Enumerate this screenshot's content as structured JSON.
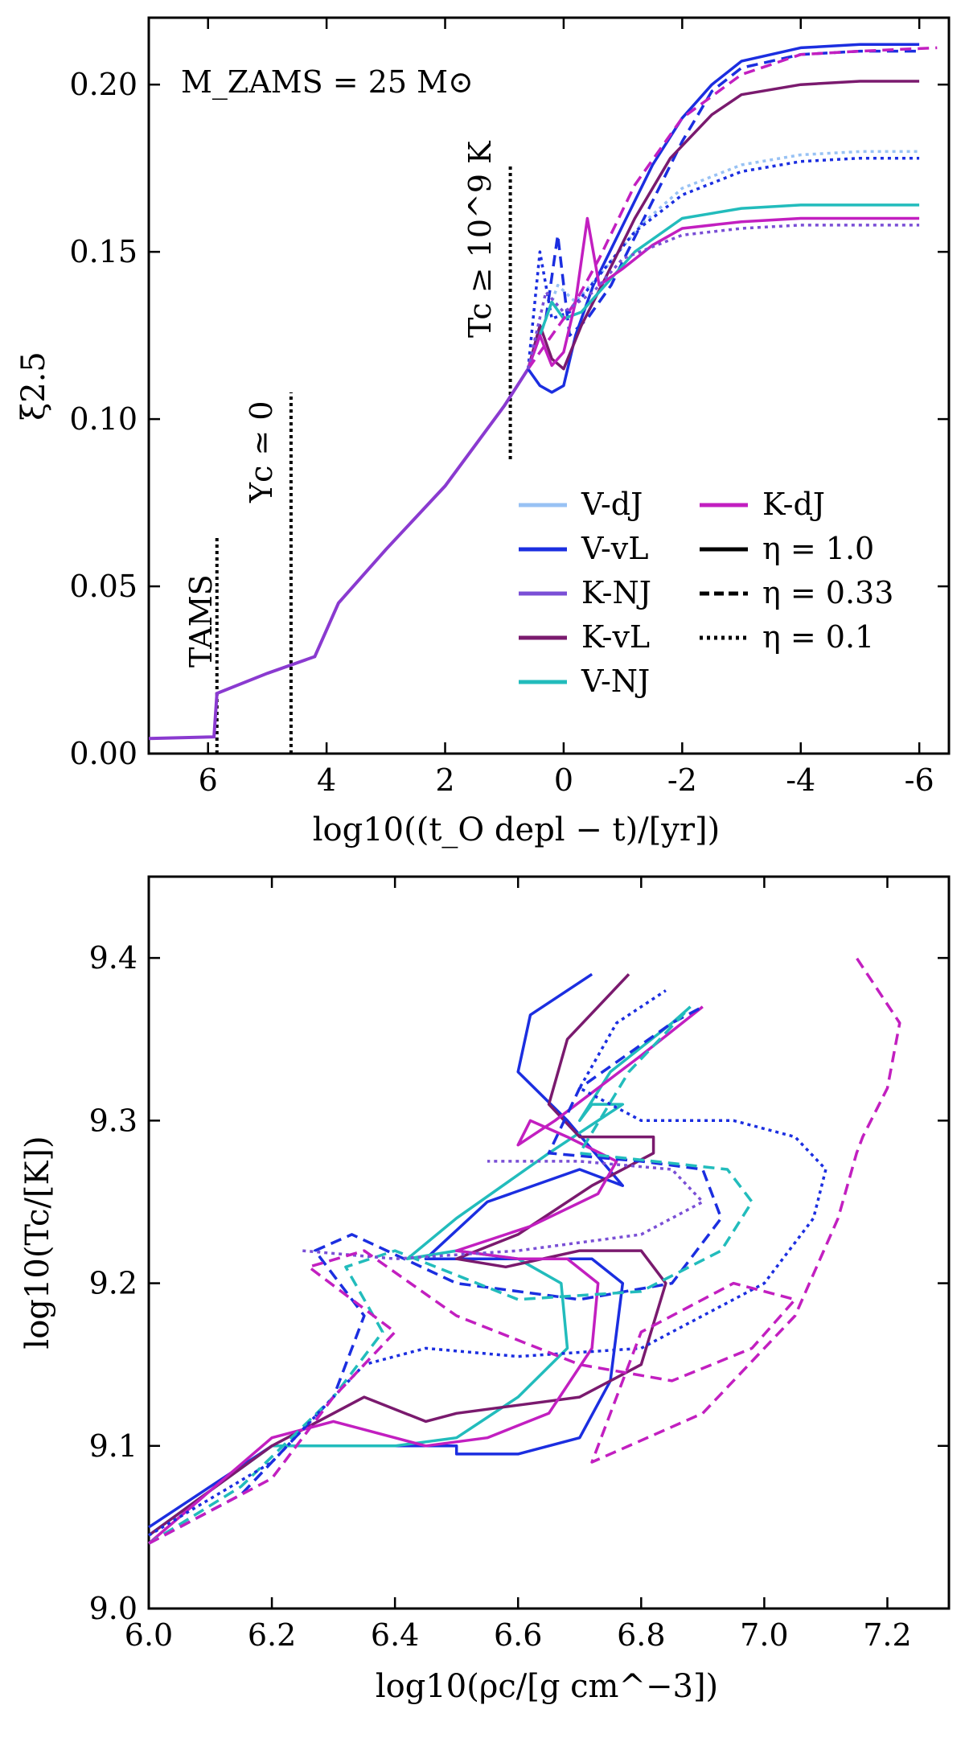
{
  "chart_data": [
    {
      "type": "line",
      "title": "",
      "annotation_text": "M_ZAMS = 25 M⊙",
      "xlabel": "log10((t_O depl − t)/[yr])",
      "ylabel": "ξ2.5",
      "xlim": [
        7,
        -6.5
      ],
      "ylim": [
        0,
        0.22
      ],
      "xticks": [
        6,
        4,
        2,
        0,
        -2,
        -4,
        -6
      ],
      "xtick_labels": [
        "6",
        "4",
        "2",
        "0",
        "-2",
        "-4",
        "-6"
      ],
      "yticks": [
        0,
        0.05,
        0.1,
        0.15,
        0.2
      ],
      "ytick_labels": [
        "0.00",
        "0.05",
        "0.10",
        "0.15",
        "0.20"
      ],
      "vlines": [
        {
          "x": 5.85,
          "ymax": 0.065,
          "label": "TAMS"
        },
        {
          "x": 4.6,
          "ymax": 0.108,
          "label": "Yc ≃ 0"
        },
        {
          "x": 0.9,
          "ymax": 0.176,
          "label": "Tc ≥ 10^9 K",
          "ymin": 0.088
        }
      ],
      "shared_trunk": {
        "x": [
          7,
          5.9,
          5.85,
          5.0,
          4.2,
          3.8,
          3.0,
          2.0,
          1.0,
          0.6
        ],
        "y": [
          0.0045,
          0.005,
          0.018,
          0.024,
          0.029,
          0.045,
          0.061,
          0.08,
          0.104,
          0.115
        ]
      },
      "series": [
        {
          "name": "V-vL",
          "eta": "1.0",
          "color": "#1b2ee0",
          "x": [
            0.6,
            0.4,
            0.2,
            0,
            -0.2,
            -0.5,
            -1,
            -1.5,
            -2,
            -2.5,
            -3,
            -4,
            -5,
            -6
          ],
          "y": [
            0.115,
            0.11,
            0.108,
            0.11,
            0.125,
            0.14,
            0.158,
            0.176,
            0.19,
            0.2,
            0.207,
            0.211,
            0.212,
            0.212
          ]
        },
        {
          "name": "V-vL",
          "eta": "0.33",
          "color": "#1b2ee0",
          "x": [
            0.6,
            0.3,
            0.1,
            -0.1,
            -0.4,
            -0.8,
            -1.3,
            -2,
            -2.5,
            -3,
            -4,
            -5,
            -6
          ],
          "y": [
            0.115,
            0.13,
            0.155,
            0.125,
            0.13,
            0.14,
            0.158,
            0.183,
            0.198,
            0.205,
            0.209,
            0.21,
            0.21
          ]
        },
        {
          "name": "V-dJ",
          "eta": "0.1",
          "color": "#98c2f4",
          "x": [
            0.6,
            0.3,
            0.1,
            -0.2,
            -0.7,
            -1.3,
            -2,
            -3,
            -4,
            -5,
            -6
          ],
          "y": [
            0.115,
            0.13,
            0.14,
            0.135,
            0.145,
            0.158,
            0.169,
            0.176,
            0.179,
            0.18,
            0.18
          ]
        },
        {
          "name": "V-vL",
          "eta": "0.1",
          "color": "#1b2ee0",
          "x": [
            0.6,
            0.4,
            0.2,
            -0.1,
            -0.6,
            -1.2,
            -2,
            -3,
            -4,
            -5,
            -6
          ],
          "y": [
            0.115,
            0.15,
            0.13,
            0.132,
            0.143,
            0.156,
            0.167,
            0.174,
            0.177,
            0.178,
            0.178
          ]
        },
        {
          "name": "K-vL",
          "eta": "1.0",
          "color": "#7a1a6e",
          "x": [
            0.6,
            0.4,
            0.2,
            0,
            -0.3,
            -0.7,
            -1.2,
            -1.8,
            -2.5,
            -3,
            -4,
            -5,
            -6
          ],
          "y": [
            0.115,
            0.128,
            0.118,
            0.115,
            0.128,
            0.142,
            0.16,
            0.178,
            0.191,
            0.197,
            0.2,
            0.201,
            0.201
          ]
        },
        {
          "name": "V-NJ",
          "eta": "1.0",
          "color": "#22bcbc",
          "x": [
            0.6,
            0.4,
            0.2,
            0,
            -0.3,
            -0.7,
            -1.2,
            -2,
            -3,
            -4,
            -5,
            -6
          ],
          "y": [
            0.115,
            0.125,
            0.135,
            0.13,
            0.132,
            0.14,
            0.15,
            0.16,
            0.163,
            0.164,
            0.164,
            0.164
          ]
        },
        {
          "name": "K-dJ",
          "eta": "1.0",
          "color": "#c21fc0",
          "x": [
            0.6,
            0.4,
            0.2,
            0,
            -0.2,
            -0.4,
            -0.6,
            -1,
            -1.5,
            -2,
            -3,
            -4,
            -5,
            -6
          ],
          "y": [
            0.115,
            0.125,
            0.116,
            0.12,
            0.135,
            0.16,
            0.14,
            0.145,
            0.152,
            0.157,
            0.159,
            0.16,
            0.16,
            0.16
          ]
        },
        {
          "name": "K-dJ",
          "eta": "0.33",
          "color": "#c21fc0",
          "x": [
            0.6,
            0.2,
            -0.2,
            -0.6,
            -1.2,
            -2,
            -3,
            -4,
            -5,
            -6.3
          ],
          "y": [
            0.115,
            0.125,
            0.135,
            0.148,
            0.17,
            0.19,
            0.203,
            0.209,
            0.21,
            0.211
          ]
        },
        {
          "name": "K-NJ",
          "eta": "0.1",
          "color": "#7a4fd6",
          "x": [
            0.6,
            0.3,
            0,
            -0.5,
            -1,
            -2,
            -3,
            -4,
            -5,
            -6
          ],
          "y": [
            0.115,
            0.138,
            0.132,
            0.138,
            0.148,
            0.155,
            0.157,
            0.158,
            0.158,
            0.158
          ]
        }
      ]
    },
    {
      "type": "line",
      "title": "",
      "xlabel": "log10(ρc/[g cm^−3])",
      "ylabel": "log10(Tc/[K])",
      "xlim": [
        6.0,
        7.3
      ],
      "ylim": [
        9.0,
        9.45
      ],
      "xticks": [
        6.0,
        6.2,
        6.4,
        6.6,
        6.8,
        7.0,
        7.2
      ],
      "xtick_labels": [
        "6.0",
        "6.2",
        "6.4",
        "6.6",
        "6.8",
        "7.0",
        "7.2"
      ],
      "yticks": [
        9.0,
        9.1,
        9.2,
        9.3,
        9.4
      ],
      "ytick_labels": [
        "9.0",
        "9.1",
        "9.2",
        "9.3",
        "9.4"
      ],
      "series": [
        {
          "name": "V-vL",
          "eta": "1.0",
          "color": "#1b2ee0",
          "x": [
            6.0,
            6.2,
            6.3,
            6.4,
            6.5,
            6.5,
            6.6,
            6.7,
            6.75,
            6.77,
            6.72,
            6.6,
            6.45,
            6.55,
            6.7,
            6.77,
            6.68,
            6.6,
            6.62,
            6.72
          ],
          "y": [
            9.05,
            9.1,
            9.1,
            9.1,
            9.1,
            9.095,
            9.095,
            9.105,
            9.14,
            9.2,
            9.215,
            9.215,
            9.215,
            9.25,
            9.27,
            9.26,
            9.3,
            9.33,
            9.365,
            9.39
          ]
        },
        {
          "name": "V-NJ",
          "eta": "1.0",
          "color": "#22bcbc",
          "x": [
            6.0,
            6.2,
            6.3,
            6.4,
            6.5,
            6.6,
            6.68,
            6.67,
            6.6,
            6.5,
            6.42,
            6.5,
            6.65,
            6.77,
            6.72,
            6.7,
            6.75,
            6.85,
            6.88
          ],
          "y": [
            9.045,
            9.1,
            9.1,
            9.1,
            9.105,
            9.13,
            9.16,
            9.2,
            9.215,
            9.22,
            9.215,
            9.24,
            9.28,
            9.31,
            9.31,
            9.3,
            9.33,
            9.36,
            9.37
          ]
        },
        {
          "name": "K-vL",
          "eta": "1.0",
          "color": "#7a1a6e",
          "x": [
            6.0,
            6.2,
            6.35,
            6.45,
            6.5,
            6.6,
            6.7,
            6.8,
            6.84,
            6.8,
            6.7,
            6.58,
            6.5,
            6.6,
            6.72,
            6.82,
            6.82,
            6.7,
            6.65,
            6.68,
            6.78
          ],
          "y": [
            9.045,
            9.1,
            9.13,
            9.115,
            9.12,
            9.125,
            9.13,
            9.15,
            9.2,
            9.22,
            9.22,
            9.21,
            9.215,
            9.23,
            9.26,
            9.28,
            9.29,
            9.29,
            9.31,
            9.35,
            9.39
          ]
        },
        {
          "name": "K-dJ",
          "eta": "1.0",
          "color": "#c21fc0",
          "x": [
            6.0,
            6.2,
            6.3,
            6.45,
            6.55,
            6.65,
            6.72,
            6.73,
            6.68,
            6.6,
            6.5,
            6.62,
            6.73,
            6.76,
            6.68,
            6.62,
            6.6,
            6.66,
            6.8,
            6.9
          ],
          "y": [
            9.04,
            9.105,
            9.115,
            9.1,
            9.105,
            9.12,
            9.16,
            9.2,
            9.215,
            9.215,
            9.22,
            9.235,
            9.255,
            9.275,
            9.29,
            9.3,
            9.285,
            9.3,
            9.34,
            9.37
          ]
        },
        {
          "name": "V-vL",
          "eta": "0.33",
          "color": "#1b2ee0",
          "x": [
            6.0,
            6.15,
            6.3,
            6.35,
            6.27,
            6.33,
            6.5,
            6.7,
            6.85,
            6.93,
            6.9,
            6.8,
            6.65,
            6.7,
            6.85,
            6.9
          ],
          "y": [
            9.04,
            9.07,
            9.13,
            9.18,
            9.22,
            9.23,
            9.2,
            9.19,
            9.2,
            9.24,
            9.27,
            9.275,
            9.28,
            9.32,
            9.36,
            9.37
          ]
        },
        {
          "name": "V-NJ",
          "eta": "0.33",
          "color": "#22bcbc",
          "x": [
            6.0,
            6.15,
            6.3,
            6.38,
            6.32,
            6.4,
            6.6,
            6.8,
            6.93,
            6.98,
            6.94,
            6.82,
            6.7,
            6.78,
            6.88
          ],
          "y": [
            9.04,
            9.075,
            9.13,
            9.17,
            9.21,
            9.22,
            9.19,
            9.195,
            9.22,
            9.25,
            9.27,
            9.275,
            9.28,
            9.33,
            9.37
          ]
        },
        {
          "name": "V-vL",
          "eta": "0.1",
          "color": "#1b2ee0",
          "x": [
            6.0,
            6.2,
            6.35,
            6.45,
            6.6,
            6.8,
            7.0,
            7.08,
            7.1,
            7.05,
            6.95,
            6.8,
            6.7,
            6.76,
            6.84
          ],
          "y": [
            9.045,
            9.09,
            9.15,
            9.16,
            9.155,
            9.16,
            9.2,
            9.24,
            9.27,
            9.29,
            9.3,
            9.3,
            9.32,
            9.36,
            9.38
          ]
        },
        {
          "name": "K-NJ",
          "eta": "0.1",
          "color": "#7a4fd6",
          "x": [
            6.25,
            6.4,
            6.6,
            6.8,
            6.9,
            6.85,
            6.7,
            6.55
          ],
          "y": [
            9.22,
            9.215,
            9.22,
            9.23,
            9.25,
            9.27,
            9.275,
            9.275
          ]
        },
        {
          "name": "K-dJ",
          "eta": "0.33",
          "color": "#c21fc0",
          "x": [
            6.0,
            6.2,
            6.3,
            6.4,
            6.26,
            6.35,
            6.5,
            6.7,
            6.85,
            6.98,
            7.05,
            6.95,
            6.8,
            6.72,
            6.9,
            7.05,
            7.12,
            7.15,
            7.16,
            7.2,
            7.22,
            7.15
          ],
          "y": [
            9.04,
            9.08,
            9.13,
            9.17,
            9.21,
            9.22,
            9.18,
            9.15,
            9.14,
            9.16,
            9.19,
            9.2,
            9.17,
            9.09,
            9.12,
            9.18,
            9.24,
            9.28,
            9.29,
            9.32,
            9.36,
            9.4
          ]
        }
      ]
    }
  ],
  "legend": {
    "entries": [
      {
        "label": "V-dJ",
        "color": "#98c2f4",
        "style": "solid"
      },
      {
        "label": "V-vL",
        "color": "#1b2ee0",
        "style": "solid"
      },
      {
        "label": "K-NJ",
        "color": "#7a4fd6",
        "style": "solid"
      },
      {
        "label": "K-vL",
        "color": "#7a1a6e",
        "style": "solid"
      },
      {
        "label": "V-NJ",
        "color": "#22bcbc",
        "style": "solid"
      },
      {
        "label": "K-dJ",
        "color": "#c21fc0",
        "style": "solid"
      },
      {
        "label": "η = 1.0",
        "color": "#000000",
        "style": "solid"
      },
      {
        "label": "η = 0.33",
        "color": "#000000",
        "style": "dashed"
      },
      {
        "label": "η = 0.1",
        "color": "#000000",
        "style": "dotted"
      }
    ]
  }
}
